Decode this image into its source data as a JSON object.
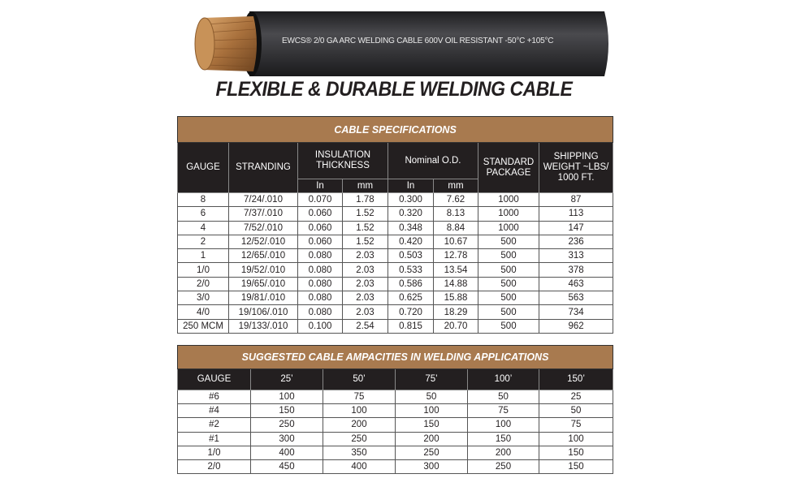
{
  "cable": {
    "print": "EWCS® 2/0 GA ARC WELDING CABLE 600V OIL RESISTANT -50°C +105°C",
    "jacket_color": "#2a2a2c",
    "copper_color": "#b07a45"
  },
  "title": "FLEXIBLE & DURABLE WELDING CABLE",
  "colors": {
    "brown": "#a87a4f",
    "dark": "#231f20"
  },
  "specs": {
    "title": "CABLE SPECIFICATIONS",
    "headers": {
      "gauge": "GAUGE",
      "stranding": "STRANDING",
      "insulation": "INSULATION THICKNESS",
      "nominal": "Nominal O.D.",
      "package": "STANDARD PACKAGE",
      "weight": "SHIPPING WEIGHT ~LBS/ 1000 FT.",
      "in": "In",
      "mm": "mm"
    },
    "rows": [
      [
        "8",
        "7/24/.010",
        "0.070",
        "1.78",
        "0.300",
        "7.62",
        "1000",
        "87"
      ],
      [
        "6",
        "7/37/.010",
        "0.060",
        "1.52",
        "0.320",
        "8.13",
        "1000",
        "113"
      ],
      [
        "4",
        "7/52/.010",
        "0.060",
        "1.52",
        "0.348",
        "8.84",
        "1000",
        "147"
      ],
      [
        "2",
        "12/52/.010",
        "0.060",
        "1.52",
        "0.420",
        "10.67",
        "500",
        "236"
      ],
      [
        "1",
        "12/65/.010",
        "0.080",
        "2.03",
        "0.503",
        "12.78",
        "500",
        "313"
      ],
      [
        "1/0",
        "19/52/.010",
        "0.080",
        "2.03",
        "0.533",
        "13.54",
        "500",
        "378"
      ],
      [
        "2/0",
        "19/65/.010",
        "0.080",
        "2.03",
        "0.586",
        "14.88",
        "500",
        "463"
      ],
      [
        "3/0",
        "19/81/.010",
        "0.080",
        "2.03",
        "0.625",
        "15.88",
        "500",
        "563"
      ],
      [
        "4/0",
        "19/106/.010",
        "0.080",
        "2.03",
        "0.720",
        "18.29",
        "500",
        "734"
      ],
      [
        "250 MCM",
        "19/133/.010",
        "0.100",
        "2.54",
        "0.815",
        "20.70",
        "500",
        "962"
      ]
    ]
  },
  "ampacity": {
    "title": "SUGGESTED CABLE AMPACITIES IN WELDING APPLICATIONS",
    "headers": [
      "GAUGE",
      "25’",
      "50’",
      "75’",
      "100’",
      "150’"
    ],
    "rows": [
      [
        "#6",
        "100",
        "75",
        "50",
        "50",
        "25"
      ],
      [
        "#4",
        "150",
        "100",
        "100",
        "75",
        "50"
      ],
      [
        "#2",
        "250",
        "200",
        "150",
        "100",
        "75"
      ],
      [
        "#1",
        "300",
        "250",
        "200",
        "150",
        "100"
      ],
      [
        "1/0",
        "400",
        "350",
        "250",
        "200",
        "150"
      ],
      [
        "2/0",
        "450",
        "400",
        "300",
        "250",
        "150"
      ]
    ]
  }
}
